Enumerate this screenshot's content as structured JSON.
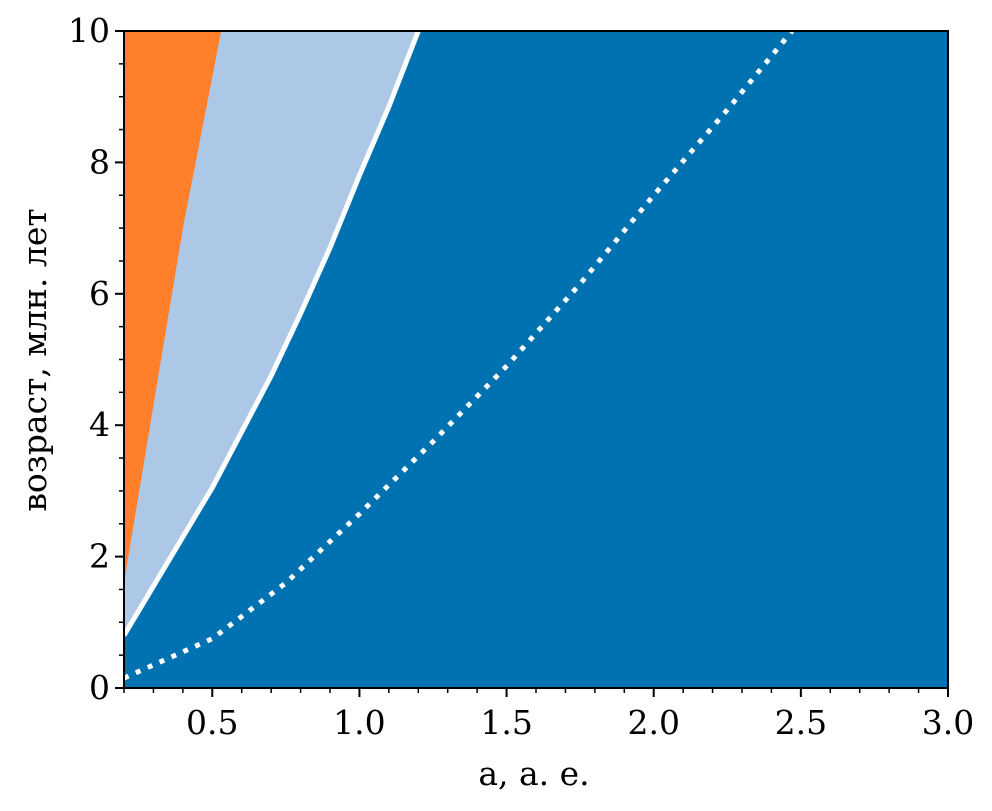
{
  "chart_data": {
    "type": "area",
    "xlabel": "a, а. е.",
    "ylabel": "возраст, млн. лет",
    "xlim": [
      0.2,
      3.0
    ],
    "ylim": [
      0,
      10
    ],
    "x_ticks": [
      "0.5",
      "1.0",
      "1.5",
      "2.0",
      "2.5",
      "3.0"
    ],
    "y_ticks": [
      "0",
      "2",
      "4",
      "6",
      "8",
      "10"
    ],
    "grid": false,
    "legend": "none",
    "colors": {
      "background_region": "#0072B2",
      "orange_region": "#FF7F2A",
      "light_region": "#ADC8E6",
      "curve": "#ffffff"
    },
    "series": [
      {
        "kind": "region-boundary",
        "x": [
          0.2,
          0.3,
          0.4,
          0.5,
          0.53
        ],
        "y": [
          1.6,
          4.3,
          7.0,
          9.3,
          10.0
        ]
      },
      {
        "kind": "solid-curve",
        "x": [
          0.2,
          0.3,
          0.4,
          0.5,
          0.6,
          0.7,
          0.8,
          0.9,
          1.0,
          1.1,
          1.2
        ],
        "y": [
          0.8,
          1.55,
          2.3,
          3.05,
          3.9,
          4.75,
          5.7,
          6.7,
          7.8,
          8.85,
          10.0
        ]
      },
      {
        "kind": "dotted-curve",
        "x": [
          0.2,
          0.5,
          0.75,
          1.0,
          1.25,
          1.5,
          1.75,
          2.0,
          2.25,
          2.47
        ],
        "y": [
          0.15,
          0.75,
          1.6,
          2.65,
          3.75,
          4.9,
          6.15,
          7.5,
          8.8,
          10.0
        ]
      }
    ]
  }
}
